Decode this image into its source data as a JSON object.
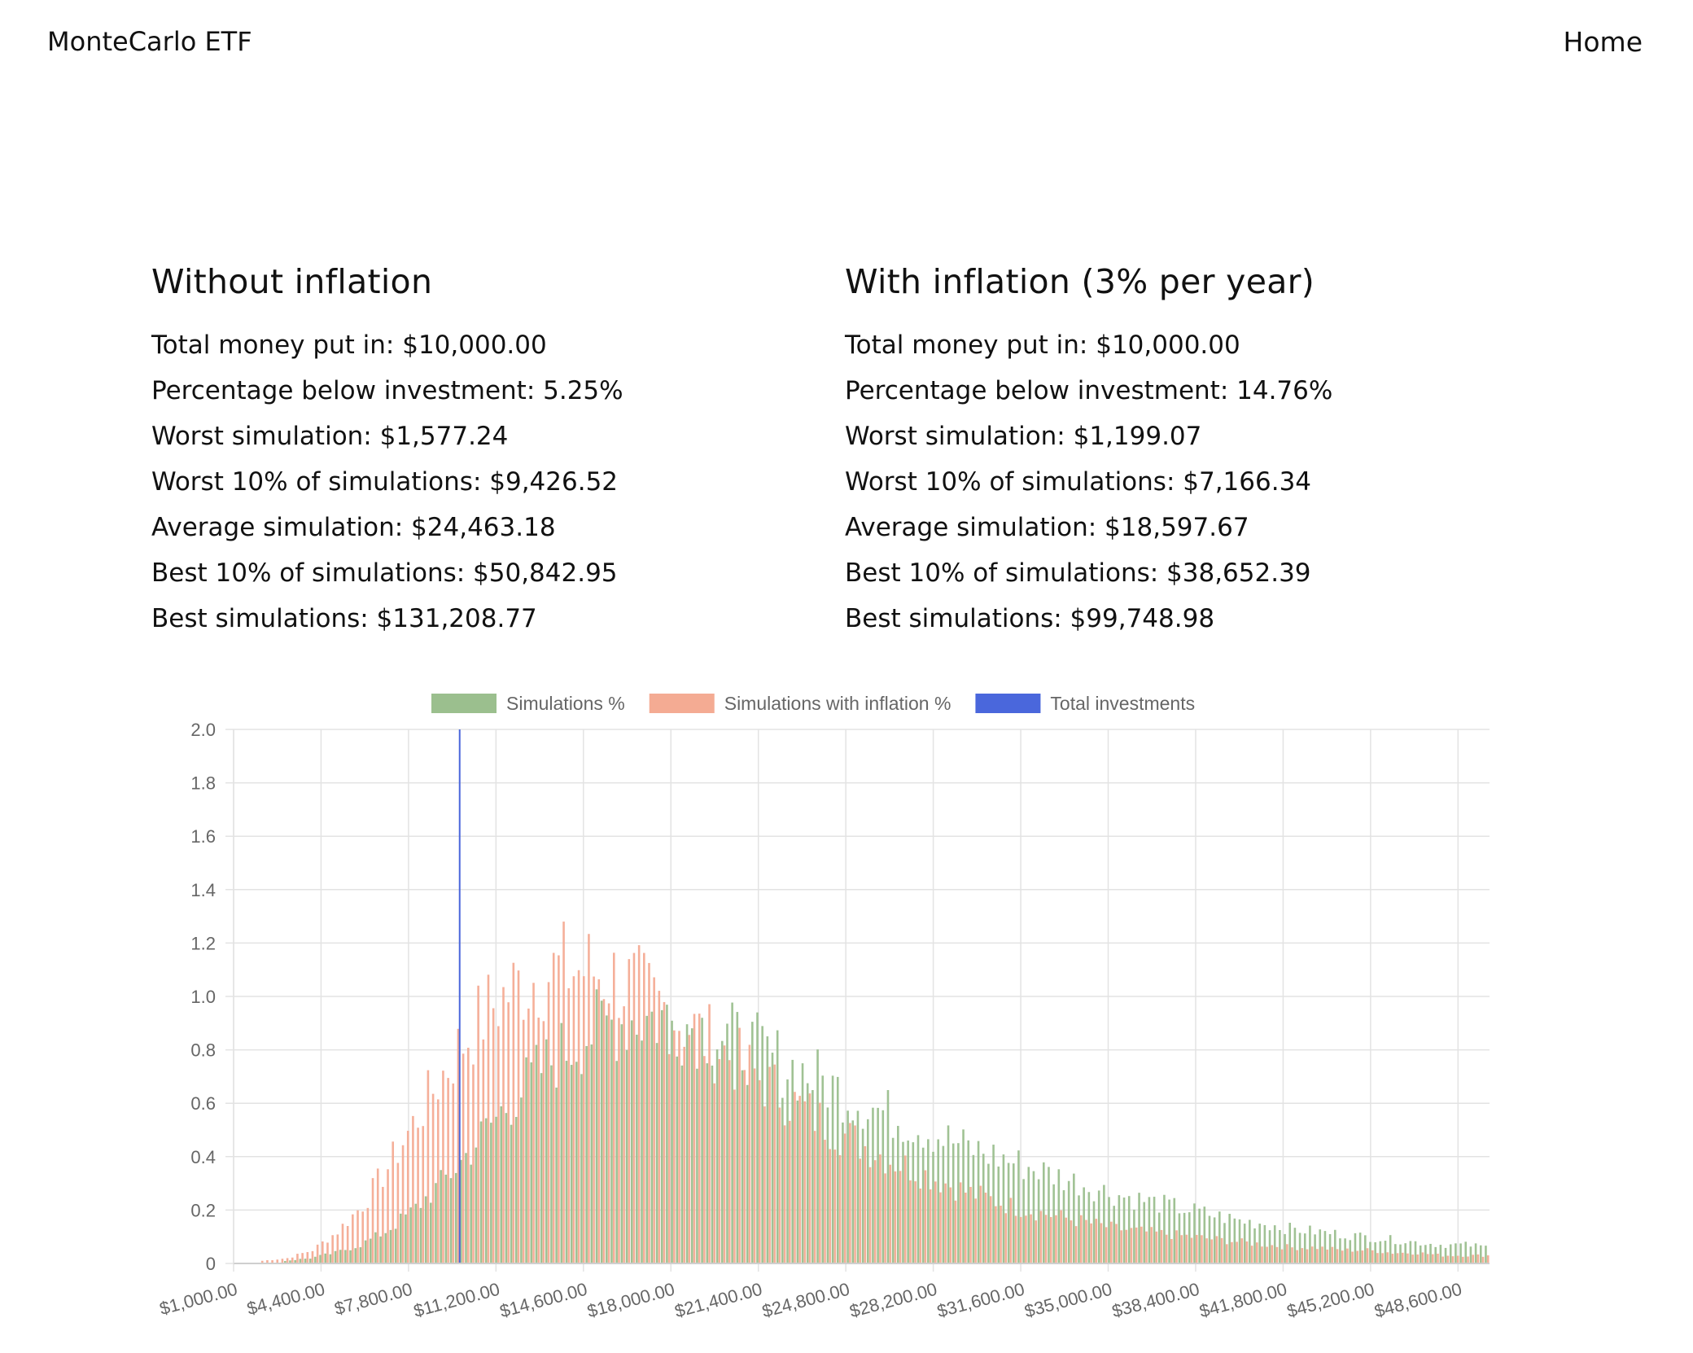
{
  "header": {
    "brand": "MonteCarlo ETF",
    "nav_home": "Home"
  },
  "without_inflation": {
    "title": "Without inflation",
    "lines": [
      "Total money put in: $10,000.00",
      "Percentage below investment: 5.25%",
      "Worst simulation: $1,577.24",
      "Worst 10% of simulations: $9,426.52",
      "Average simulation: $24,463.18",
      "Best 10% of simulations: $50,842.95",
      "Best simulations: $131,208.77"
    ]
  },
  "with_inflation": {
    "title": "With inflation (3% per year)",
    "lines": [
      "Total money put in: $10,000.00",
      "Percentage below investment: 14.76%",
      "Worst simulation: $1,199.07",
      "Worst 10% of simulations: $7,166.34",
      "Average simulation: $18,597.67",
      "Best 10% of simulations: $38,652.39",
      "Best simulations: $99,748.98"
    ]
  },
  "chart_data": {
    "type": "bar",
    "x_min": 1000,
    "x_max": 51000,
    "bin_width": 200,
    "ylim": [
      0,
      2.0
    ],
    "yticks": [
      "0",
      "0.2",
      "0.4",
      "0.6",
      "0.8",
      "1.0",
      "1.2",
      "1.4",
      "1.6",
      "1.8",
      "2.0"
    ],
    "xticks": [
      "$1,000.00",
      "$4,400.00",
      "$7,800.00",
      "$11,200.00",
      "$14,600.00",
      "$18,000.00",
      "$21,400.00",
      "$24,800.00",
      "$28,200.00",
      "$31,600.00",
      "$35,000.00",
      "$38,400.00",
      "$41,800.00",
      "$45,200.00",
      "$48,600.00"
    ],
    "grid": true,
    "legend_position": "top",
    "total_investment": 10000,
    "series": [
      {
        "name": "Simulations %",
        "color": "#9bbf8e",
        "points": [
          [
            3000,
            0.01
          ],
          [
            4000,
            0.02
          ],
          [
            5000,
            0.04
          ],
          [
            6000,
            0.07
          ],
          [
            7000,
            0.12
          ],
          [
            8000,
            0.19
          ],
          [
            9000,
            0.28
          ],
          [
            10000,
            0.38
          ],
          [
            11000,
            0.5
          ],
          [
            12000,
            0.61
          ],
          [
            13000,
            0.71
          ],
          [
            14000,
            0.79
          ],
          [
            15000,
            0.86
          ],
          [
            16000,
            0.9
          ],
          [
            17000,
            0.92
          ],
          [
            18000,
            0.92
          ],
          [
            19000,
            0.9
          ],
          [
            20000,
            0.87
          ],
          [
            21000,
            0.83
          ],
          [
            22000,
            0.79
          ],
          [
            23000,
            0.74
          ],
          [
            24000,
            0.7
          ],
          [
            25000,
            0.65
          ],
          [
            26000,
            0.6
          ],
          [
            27000,
            0.56
          ],
          [
            28000,
            0.52
          ],
          [
            29000,
            0.48
          ],
          [
            30000,
            0.44
          ],
          [
            31000,
            0.41
          ],
          [
            32000,
            0.38
          ],
          [
            33000,
            0.35
          ],
          [
            34000,
            0.32
          ],
          [
            35000,
            0.29
          ],
          [
            36000,
            0.26
          ],
          [
            37000,
            0.24
          ],
          [
            38000,
            0.22
          ],
          [
            39000,
            0.2
          ],
          [
            40000,
            0.18
          ],
          [
            41000,
            0.16
          ],
          [
            42000,
            0.15
          ],
          [
            43000,
            0.13
          ],
          [
            44000,
            0.12
          ],
          [
            45000,
            0.11
          ],
          [
            46000,
            0.1
          ],
          [
            47000,
            0.09
          ],
          [
            48000,
            0.08
          ],
          [
            49000,
            0.07
          ],
          [
            50000,
            0.07
          ],
          [
            51000,
            0.06
          ]
        ]
      },
      {
        "name": "Simulations with inflation %",
        "color": "#f4ab93",
        "points": [
          [
            2000,
            0.01
          ],
          [
            3000,
            0.02
          ],
          [
            4000,
            0.05
          ],
          [
            5000,
            0.12
          ],
          [
            6000,
            0.22
          ],
          [
            7000,
            0.36
          ],
          [
            8000,
            0.52
          ],
          [
            9000,
            0.68
          ],
          [
            10000,
            0.83
          ],
          [
            11000,
            0.95
          ],
          [
            12000,
            1.03
          ],
          [
            13000,
            1.08
          ],
          [
            14000,
            1.1
          ],
          [
            15000,
            1.1
          ],
          [
            16000,
            1.07
          ],
          [
            17000,
            1.02
          ],
          [
            18000,
            0.96
          ],
          [
            19000,
            0.89
          ],
          [
            20000,
            0.82
          ],
          [
            21000,
            0.75
          ],
          [
            22000,
            0.68
          ],
          [
            23000,
            0.61
          ],
          [
            24000,
            0.55
          ],
          [
            25000,
            0.49
          ],
          [
            26000,
            0.44
          ],
          [
            27000,
            0.39
          ],
          [
            28000,
            0.35
          ],
          [
            29000,
            0.31
          ],
          [
            30000,
            0.27
          ],
          [
            31000,
            0.24
          ],
          [
            32000,
            0.21
          ],
          [
            33000,
            0.19
          ],
          [
            34000,
            0.17
          ],
          [
            35000,
            0.15
          ],
          [
            36000,
            0.13
          ],
          [
            37000,
            0.12
          ],
          [
            38000,
            0.11
          ],
          [
            39000,
            0.1
          ],
          [
            40000,
            0.09
          ],
          [
            41000,
            0.08
          ],
          [
            42000,
            0.07
          ],
          [
            43000,
            0.06
          ],
          [
            44000,
            0.06
          ],
          [
            45000,
            0.05
          ],
          [
            46000,
            0.05
          ],
          [
            47000,
            0.04
          ],
          [
            48000,
            0.04
          ],
          [
            49000,
            0.03
          ],
          [
            50000,
            0.03
          ],
          [
            51000,
            0.03
          ]
        ]
      },
      {
        "name": "Total investments",
        "color": "#4a67dc"
      }
    ]
  }
}
